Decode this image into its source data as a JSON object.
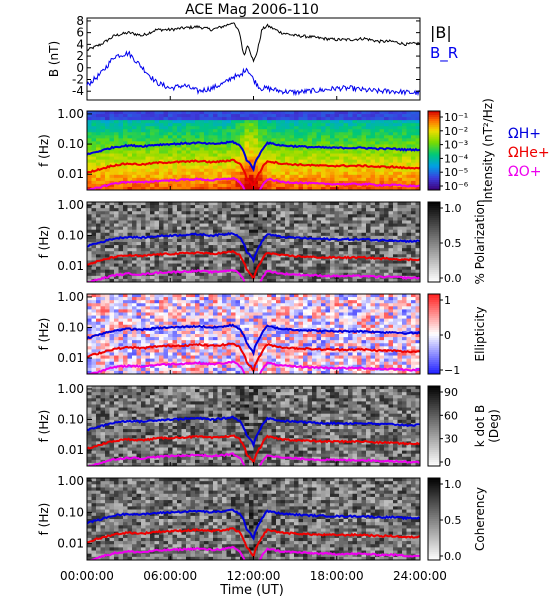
{
  "chart_data": {
    "type": "line",
    "title": "ACE Mag 2006-110",
    "xlabel": "Time (UT)",
    "x_ticks": [
      "00:00:00",
      "06:00:00",
      "12:00:00",
      "18:00:00",
      "24:00:00"
    ],
    "x_range_hours": [
      0,
      24
    ],
    "panels": [
      {
        "id": "magnetic-field",
        "type": "line",
        "ylabel": "B (nT)",
        "ylim": [
          -5.5,
          8.5
        ],
        "y_ticks": [
          -4,
          -2,
          0,
          2,
          4,
          6,
          8
        ],
        "legend": [
          "|B|",
          "B_R"
        ],
        "series": [
          {
            "name": "|B|",
            "color": "#000000",
            "x_hours": [
              0,
              1,
              2,
              3,
              4,
              5,
              6,
              7,
              8,
              9,
              10,
              10.5,
              11,
              11.3,
              11.6,
              12,
              12.3,
              12.6,
              13,
              14,
              15,
              16,
              17,
              18,
              19,
              20,
              21,
              22,
              23,
              24
            ],
            "values": [
              3.0,
              4.0,
              5.5,
              6.0,
              5.5,
              6.5,
              6.5,
              6.8,
              7.0,
              6.5,
              7.2,
              7.8,
              6.0,
              2.0,
              4.0,
              1.0,
              3.0,
              6.5,
              7.2,
              6.0,
              5.5,
              5.3,
              5.0,
              4.8,
              4.8,
              5.0,
              4.5,
              4.5,
              4.0,
              4.2
            ]
          },
          {
            "name": "B_R",
            "color": "#0000ee",
            "x_hours": [
              0,
              1,
              2,
              3,
              4,
              5,
              6,
              7,
              8,
              9,
              10,
              10.5,
              11,
              11.5,
              12,
              12.5,
              13,
              14,
              15,
              16,
              17,
              18,
              19,
              20,
              21,
              22,
              23,
              24
            ],
            "values": [
              -3.0,
              -1.0,
              2.0,
              2.5,
              0.0,
              -2.5,
              -3.5,
              -3.0,
              -4.0,
              -3.5,
              -2.5,
              -1.5,
              -1.5,
              0.0,
              -2.0,
              -3.5,
              -3.5,
              -4.0,
              -4.2,
              -4.0,
              -3.8,
              -3.5,
              -3.5,
              -3.8,
              -4.0,
              -4.0,
              -4.2,
              -4.3
            ]
          }
        ]
      },
      {
        "id": "intensity",
        "type": "heatmap",
        "ylabel": "f (Hz)",
        "y_ticks": [
          "1.00",
          "0.10",
          "0.01"
        ],
        "colorbar": {
          "label": "Intensity (nT²/Hz)",
          "ticks": [
            "10⁻¹",
            "10⁻²",
            "10⁻³",
            "10⁻⁴",
            "10⁻⁵",
            "10⁻⁶"
          ]
        },
        "gyrofrequency_legend": [
          "ΩH+",
          "ΩHe+",
          "ΩO+"
        ]
      },
      {
        "id": "polarization",
        "type": "heatmap",
        "ylabel": "f (Hz)",
        "y_ticks": [
          "1.00",
          "0.10",
          "0.01"
        ],
        "colorbar": {
          "label": "% Polarization",
          "ticks": [
            "1.0",
            "0.5",
            "0.0"
          ]
        }
      },
      {
        "id": "ellipticity",
        "type": "heatmap",
        "ylabel": "f (Hz)",
        "y_ticks": [
          "1.00",
          "0.10",
          "0.01"
        ],
        "colorbar": {
          "label": "Ellipticity",
          "ticks": [
            "1",
            "0",
            "−1"
          ]
        }
      },
      {
        "id": "k-dot-b",
        "type": "heatmap",
        "ylabel": "f (Hz)",
        "y_ticks": [
          "1.00",
          "0.10",
          "0.01"
        ],
        "colorbar": {
          "label": "k dot B",
          "sublabel": "(Deg)",
          "ticks": [
            "90",
            "60",
            "30",
            "0"
          ]
        }
      },
      {
        "id": "coherency",
        "type": "heatmap",
        "ylabel": "f (Hz)",
        "y_ticks": [
          "1.00",
          "0.10",
          "0.01"
        ],
        "colorbar": {
          "label": "Coherency",
          "ticks": [
            "1.0",
            "0.5",
            "0.0"
          ]
        }
      }
    ],
    "gyrofrequency_curves": [
      {
        "name": "ΩH+",
        "color": "#0000dd",
        "x_hours": [
          0,
          1,
          2,
          3,
          4,
          5,
          6,
          7,
          8,
          9,
          10,
          10.5,
          11,
          11.5,
          12,
          12.5,
          13,
          14,
          15,
          16,
          17,
          18,
          19,
          20,
          21,
          22,
          23,
          24
        ],
        "values_hz": [
          0.045,
          0.06,
          0.08,
          0.09,
          0.085,
          0.095,
          0.1,
          0.105,
          0.11,
          0.1,
          0.11,
          0.12,
          0.09,
          0.03,
          0.015,
          0.05,
          0.11,
          0.09,
          0.085,
          0.08,
          0.077,
          0.075,
          0.075,
          0.075,
          0.07,
          0.07,
          0.065,
          0.066
        ]
      },
      {
        "name": "ΩHe+",
        "color": "#ee0000",
        "x_hours": [
          0,
          1,
          2,
          3,
          4,
          5,
          6,
          7,
          8,
          9,
          10,
          10.5,
          11,
          11.5,
          12,
          12.5,
          13,
          14,
          15,
          16,
          17,
          18,
          19,
          20,
          21,
          22,
          23,
          24
        ],
        "values_hz": [
          0.011,
          0.015,
          0.02,
          0.0225,
          0.021,
          0.024,
          0.025,
          0.026,
          0.0275,
          0.025,
          0.0275,
          0.03,
          0.0225,
          0.0075,
          0.0038,
          0.0125,
          0.0275,
          0.0225,
          0.021,
          0.02,
          0.019,
          0.019,
          0.019,
          0.019,
          0.0175,
          0.0175,
          0.016,
          0.0165
        ]
      },
      {
        "name": "ΩO+",
        "color": "#ee00ee",
        "x_hours": [
          0,
          1,
          2,
          3,
          4,
          5,
          6,
          7,
          8,
          9,
          10,
          10.5,
          11,
          11.5,
          12,
          12.5,
          13,
          14,
          15,
          16,
          17,
          18,
          19,
          20,
          21,
          22,
          23,
          24
        ],
        "values_hz": [
          0.0028,
          0.0038,
          0.005,
          0.0056,
          0.0053,
          0.006,
          0.0063,
          0.0066,
          0.0069,
          0.0063,
          0.0069,
          0.0075,
          0.0056,
          0.0019,
          0.001,
          0.0031,
          0.0069,
          0.0056,
          0.0053,
          0.005,
          0.0048,
          0.0047,
          0.0047,
          0.0047,
          0.0044,
          0.0044,
          0.0041,
          0.0041
        ]
      }
    ]
  }
}
